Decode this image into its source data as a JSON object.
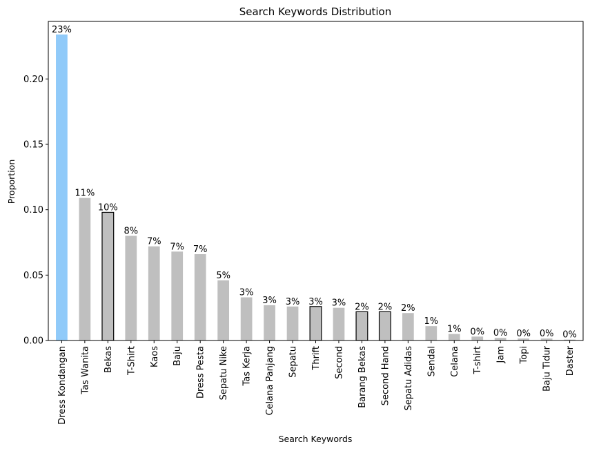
{
  "chart_data": {
    "type": "bar",
    "title": "Search Keywords Distribution",
    "xlabel": "Search Keywords",
    "ylabel": "Proportion",
    "ylim": [
      0,
      0.244
    ],
    "yticks": [
      "0.00",
      "0.05",
      "0.10",
      "0.15",
      "0.20"
    ],
    "grid": false,
    "categories": [
      "Dress Kondangan",
      "Tas Wanita",
      "Bekas",
      "T-Shirt",
      "Kaos",
      "Baju",
      "Dress Pesta",
      "Sepatu Nike",
      "Tas Kerja",
      "Celana Panjang",
      "Sepatu",
      "Thrift",
      "Second",
      "Barang Bekas",
      "Second Hand",
      "Sepatu Adidas",
      "Sendal",
      "Celana",
      "T-shirt",
      "Jam",
      "Topi",
      "Baju Tidur",
      "Daster"
    ],
    "values": [
      0.234,
      0.109,
      0.098,
      0.08,
      0.072,
      0.068,
      0.066,
      0.046,
      0.033,
      0.027,
      0.026,
      0.026,
      0.025,
      0.022,
      0.022,
      0.021,
      0.011,
      0.005,
      0.003,
      0.002,
      0.0015,
      0.0015,
      0.0007
    ],
    "labels": [
      "23%",
      "11%",
      "10%",
      "8%",
      "7%",
      "7%",
      "7%",
      "5%",
      "3%",
      "3%",
      "3%",
      "3%",
      "3%",
      "2%",
      "2%",
      "2%",
      "1%",
      "1%",
      "0%",
      "0%",
      "0%",
      "0%",
      "0%"
    ],
    "colors": {
      "highlight": "#90caf9",
      "default": "#bfbfbf",
      "outline": "#000000"
    },
    "highlighted": [
      "Dress Kondangan"
    ],
    "outlined": [
      "Bekas",
      "Thrift",
      "Barang Bekas",
      "Second Hand"
    ]
  }
}
